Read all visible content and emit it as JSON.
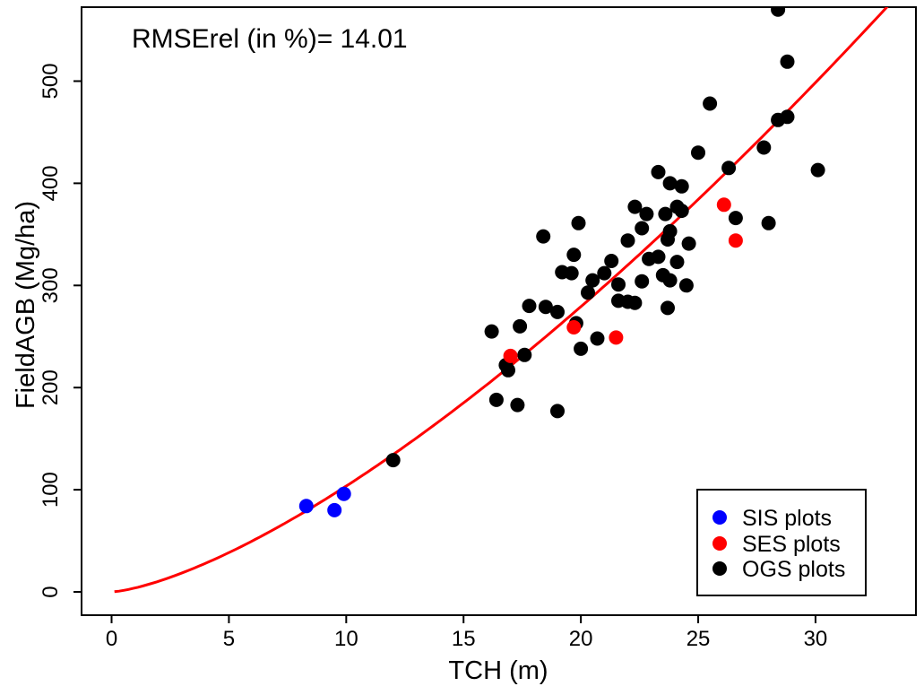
{
  "chart_data": {
    "type": "scatter",
    "annotation": "RMSErel (in %)= 14.01",
    "xlabel": "TCH (m)",
    "ylabel": "FieldAGB (Mg/ha)",
    "xlim": [
      -1.28,
      34.28
    ],
    "ylim": [
      -22.8,
      572.4
    ],
    "x_ticks": [
      0,
      5,
      10,
      15,
      20,
      25,
      30
    ],
    "y_ticks": [
      0,
      100,
      200,
      300,
      400,
      500
    ],
    "grid": false,
    "background": "#ffffff",
    "axis_color": "#000000",
    "legend_position": "bottom-right",
    "point_radius": 8,
    "series": [
      {
        "name": "OGS plots",
        "color": "#000000",
        "points": [
          [
            12.0,
            129
          ],
          [
            16.4,
            188
          ],
          [
            17.3,
            183
          ],
          [
            19.0,
            177
          ],
          [
            16.8,
            222
          ],
          [
            16.9,
            217
          ],
          [
            17.6,
            232
          ],
          [
            20.0,
            238
          ],
          [
            20.7,
            248
          ],
          [
            19.8,
            263
          ],
          [
            17.4,
            260
          ],
          [
            16.2,
            255
          ],
          [
            17.8,
            280
          ],
          [
            18.5,
            279
          ],
          [
            19.0,
            274
          ],
          [
            20.3,
            293
          ],
          [
            19.2,
            313
          ],
          [
            19.6,
            312
          ],
          [
            19.7,
            330
          ],
          [
            20.5,
            305
          ],
          [
            21.0,
            312
          ],
          [
            21.3,
            324
          ],
          [
            21.6,
            301
          ],
          [
            21.6,
            285
          ],
          [
            22.0,
            284
          ],
          [
            22.3,
            283
          ],
          [
            22.6,
            304
          ],
          [
            22.9,
            326
          ],
          [
            18.4,
            348
          ],
          [
            19.9,
            361
          ],
          [
            22.0,
            344
          ],
          [
            22.3,
            377
          ],
          [
            22.6,
            356
          ],
          [
            22.8,
            370
          ],
          [
            23.6,
            370
          ],
          [
            24.1,
            377
          ],
          [
            24.3,
            373
          ],
          [
            23.8,
            353
          ],
          [
            23.7,
            345
          ],
          [
            24.6,
            341
          ],
          [
            23.3,
            328
          ],
          [
            24.1,
            323
          ],
          [
            23.5,
            310
          ],
          [
            23.8,
            305
          ],
          [
            24.5,
            300
          ],
          [
            23.7,
            278
          ],
          [
            23.3,
            411
          ],
          [
            23.8,
            400
          ],
          [
            24.3,
            397
          ],
          [
            25.0,
            430
          ],
          [
            25.5,
            478
          ],
          [
            26.3,
            415
          ],
          [
            26.6,
            366
          ],
          [
            27.8,
            435
          ],
          [
            28.0,
            361
          ],
          [
            28.4,
            462
          ],
          [
            28.8,
            465
          ],
          [
            28.8,
            519
          ],
          [
            30.1,
            413
          ],
          [
            28.4,
            570
          ]
        ]
      },
      {
        "name": "SES plots",
        "color": "#ff0000",
        "points": [
          [
            17.0,
            231
          ],
          [
            19.7,
            259
          ],
          [
            21.5,
            249
          ],
          [
            26.1,
            379
          ],
          [
            26.6,
            344
          ]
        ]
      },
      {
        "name": "SIS plots",
        "color": "#0000ff",
        "points": [
          [
            8.3,
            84
          ],
          [
            9.5,
            80
          ],
          [
            9.9,
            96
          ]
        ]
      }
    ],
    "legend_order": [
      "SIS plots",
      "SES plots",
      "OGS plots"
    ],
    "fit_curve": {
      "model": "power",
      "formula": "AGB = 3.85 * TCH^1.43",
      "a": 3.85,
      "b": 1.43,
      "color": "#ff0000",
      "width": 3,
      "x_start": 0.12,
      "x_end": 34.3
    }
  }
}
